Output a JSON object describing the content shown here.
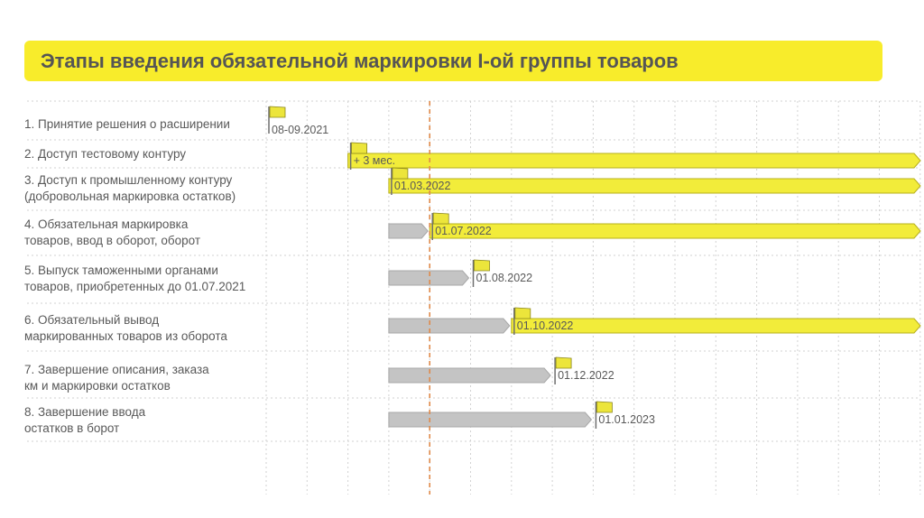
{
  "colors": {
    "title_bg": "#f8ec2b",
    "bar_yellow": "#f2ec3a",
    "bar_yellow_border": "#b7b01c",
    "bar_gray": "#c4c4c4",
    "bar_gray_border": "#a8a8a8",
    "flag": "#ece53b",
    "today_line": "#e08a4a",
    "grid": "#d2d2d2"
  },
  "chart_data": {
    "type": "gantt",
    "title": "Этапы введения обязательной маркировки I-ой группы товаров",
    "columns": 16,
    "today_column": 4,
    "rows": [
      {
        "label": "1. Принятие решения о расширении",
        "milestone": {
          "column": 0,
          "text": "08-09.2021"
        }
      },
      {
        "label": "2. Доступ тестовому контуру",
        "milestone": {
          "column": 2,
          "text": "+ 3 мес."
        },
        "bar": {
          "color": "yellow",
          "start": 2,
          "end": 16
        }
      },
      {
        "label": "3. Доступ к промышленному контуру\n(добровольная маркировка остатков)",
        "milestone": {
          "column": 3,
          "text": "01.03.2022"
        },
        "bar": {
          "color": "yellow",
          "start": 3,
          "end": 16
        }
      },
      {
        "label": "4. Обязательная маркировка\nтоваров, ввод в оборот, оборот",
        "milestone": {
          "column": 4,
          "text": "01.07.2022"
        },
        "pre_bar": {
          "start": 3,
          "end": 4
        },
        "bar": {
          "color": "yellow",
          "start": 4,
          "end": 16
        }
      },
      {
        "label": "5. Выпуск таможенными органами\nтоваров, приобретенных до 01.07.2021",
        "milestone": {
          "column": 5,
          "text": "01.08.2022"
        },
        "pre_bar": {
          "start": 3,
          "end": 5
        }
      },
      {
        "label": "6. Обязательный вывод\nмаркированных товаров из оборота",
        "milestone": {
          "column": 6,
          "text": "01.10.2022"
        },
        "pre_bar": {
          "start": 3,
          "end": 6
        },
        "bar": {
          "color": "yellow",
          "start": 6,
          "end": 16
        }
      },
      {
        "label": "7. Завершение описания, заказа\nкм и маркировки остатков",
        "milestone": {
          "column": 7,
          "text": "01.12.2022"
        },
        "pre_bar": {
          "start": 3,
          "end": 7
        }
      },
      {
        "label": "8. Завершение ввода\nостатков в борот",
        "milestone": {
          "column": 8,
          "text": "01.01.2023"
        },
        "pre_bar": {
          "start": 3,
          "end": 8
        }
      }
    ]
  }
}
